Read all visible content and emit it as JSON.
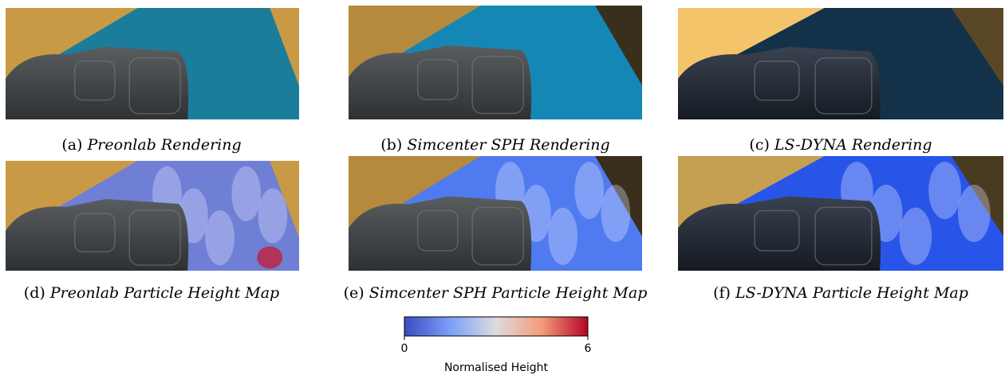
{
  "panels": [
    {
      "label": "(a)",
      "caption": "Preonlab Rendering"
    },
    {
      "label": "(b)",
      "caption": "Simcenter SPH Rendering"
    },
    {
      "label": "(c)",
      "caption": "LS-DYNA Rendering"
    },
    {
      "label": "(d)",
      "caption": "Preonlab Particle Height Map"
    },
    {
      "label": "(e)",
      "caption": "Simcenter SPH Particle Height Map"
    },
    {
      "label": "(f)",
      "caption": "LS-DYNA Particle Height Map"
    }
  ],
  "colorbar": {
    "ticks": [
      0,
      6
    ],
    "label": "Normalised Height"
  }
}
